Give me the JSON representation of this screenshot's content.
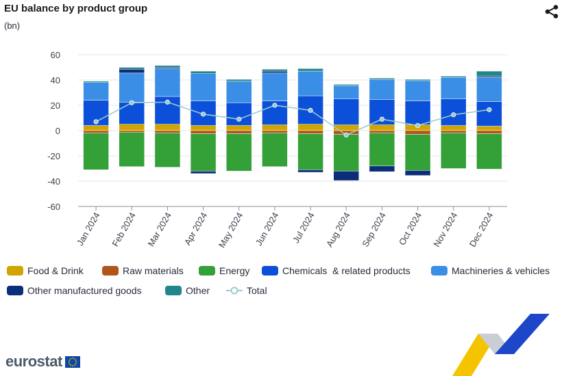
{
  "header": {
    "title": "EU balance by product group",
    "unit": "(bn)",
    "share_icon": "share-icon"
  },
  "colors": {
    "food": "#d1a500",
    "raw": "#b0561a",
    "energy": "#34a038",
    "chemicals": "#0c4fd8",
    "machinery": "#3a8ee6",
    "other_manufactured": "#0b2e78",
    "other": "#21858a",
    "total": "#9ccbcc"
  },
  "chart_data": {
    "type": "bar",
    "stacked": true,
    "title": "EU balance by product group",
    "ylabel": "(bn)",
    "ylim": [
      -60,
      60
    ],
    "yticks": [
      60,
      40,
      20,
      0,
      -20,
      -40,
      -60
    ],
    "grid": true,
    "categories": [
      "Jan 2024",
      "Feb 2024",
      "Mar 2024",
      "Apr 2024",
      "May 2024",
      "Jun 2024",
      "Jul 2024",
      "Aug 2024",
      "Sep 2024",
      "Oct 2024",
      "Nov 2024",
      "Dec 2024"
    ],
    "series": [
      {
        "key": "food",
        "name": "Food & Drink",
        "values": [
          4,
          5,
          5,
          4,
          4,
          4.5,
          5,
          4.5,
          4.5,
          4.5,
          4,
          3.5
        ]
      },
      {
        "key": "raw",
        "name": "Raw materials",
        "values": [
          -2,
          -1.5,
          -2,
          -2.5,
          -2.5,
          -2,
          -2.5,
          -3,
          -2,
          -3,
          -2,
          -2.5
        ]
      },
      {
        "key": "energy",
        "name": "Energy",
        "values": [
          -29,
          -27,
          -27,
          -29.5,
          -29.5,
          -26.5,
          -28.5,
          -29,
          -26,
          -28.5,
          -28,
          -28
        ]
      },
      {
        "key": "chemicals",
        "name": "Chemicals  & related products",
        "values": [
          20,
          17.5,
          22,
          19.5,
          18,
          19,
          22.5,
          20.5,
          20,
          19,
          21,
          19.5
        ]
      },
      {
        "key": "machinery",
        "name": "Machineries & vehicles",
        "values": [
          14,
          23,
          22,
          21.5,
          17,
          22,
          19.5,
          10.5,
          16,
          16,
          17,
          19
        ]
      },
      {
        "key": "other_manufactured",
        "name": "Other manufactured goods",
        "values": [
          0,
          3,
          1,
          0,
          0,
          1.5,
          0,
          0,
          0,
          0,
          0,
          1
        ]
      },
      {
        "key": "other_manufactured_neg",
        "name": "Other manufactured goods",
        "legend": false,
        "values": [
          0,
          0,
          0,
          -2,
          0,
          0,
          -2,
          -7.5,
          -4.5,
          -4,
          0,
          0
        ]
      },
      {
        "key": "other",
        "name": "Other",
        "values": [
          1,
          1.5,
          1.5,
          2,
          1.5,
          1.5,
          2,
          1,
          1,
          1,
          1,
          4
        ]
      }
    ],
    "total": {
      "name": "Total",
      "values": [
        7,
        22,
        22.5,
        13,
        9,
        20,
        16,
        -3.5,
        9,
        4,
        12.5,
        16.5
      ]
    }
  },
  "legend": {
    "items": [
      {
        "key": "food",
        "label": "Food & Drink"
      },
      {
        "key": "raw",
        "label": "Raw materials"
      },
      {
        "key": "energy",
        "label": "Energy"
      },
      {
        "key": "chemicals",
        "label": "Chemicals  & related products"
      },
      {
        "key": "machinery",
        "label": "Machineries & vehicles"
      },
      {
        "key": "other_manufactured",
        "label": "Other manufactured goods"
      },
      {
        "key": "other",
        "label": "Other"
      },
      {
        "key": "total",
        "label": "Total"
      }
    ]
  },
  "footer": {
    "logo_text": "eurostat"
  }
}
